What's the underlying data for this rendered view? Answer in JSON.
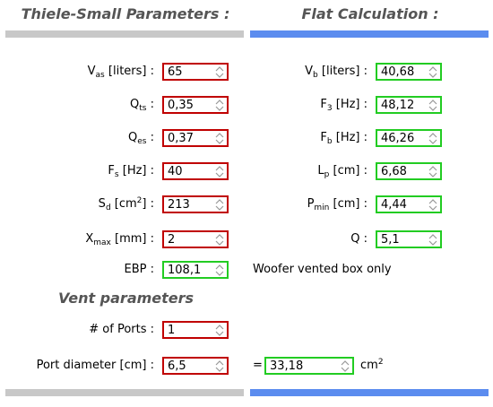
{
  "headers": {
    "left": "Thiele-Small Parameters :",
    "right": "Flat Calculation :"
  },
  "ts_params": [
    {
      "base": "V",
      "sub": "as",
      "suffix": " [liters] :",
      "value": "65"
    },
    {
      "base": "Q",
      "sub": "ts",
      "suffix": " :",
      "value": "0,35"
    },
    {
      "base": "Q",
      "sub": "es",
      "suffix": " :",
      "value": "0,37"
    },
    {
      "base": "F",
      "sub": "s",
      "suffix": " [Hz] :",
      "value": "40"
    },
    {
      "base": "S",
      "sub": "d",
      "suffix": " [cm",
      "sup": "2",
      "suffix2": "] :",
      "value": "213"
    },
    {
      "base": "X",
      "sub": "max",
      "suffix": " [mm] :",
      "value": "2"
    }
  ],
  "ebp": {
    "label": "EBP :",
    "value": "108,1"
  },
  "flat": [
    {
      "base": "V",
      "sub": "b",
      "suffix": " [liters] :",
      "value": "40,68"
    },
    {
      "base": "F",
      "sub": "3",
      "suffix": " [Hz] :",
      "value": "48,12"
    },
    {
      "base": "F",
      "sub": "b",
      "suffix": " [Hz] :",
      "value": "46,26"
    },
    {
      "base": "L",
      "sub": "p",
      "suffix": " [cm] :",
      "value": "6,68"
    },
    {
      "base": "P",
      "sub": "min",
      "suffix": " [cm] :",
      "value": "4,44"
    },
    {
      "base": "Q",
      "sub": "",
      "suffix": " :",
      "value": "5,1"
    }
  ],
  "note": "Woofer vented box only",
  "vent": {
    "title": "Vent parameters",
    "ports_label": "# of Ports :",
    "ports_value": "1",
    "diameter_label": "Port diameter [cm] :",
    "diameter_value": "6,5",
    "equals": "=",
    "area_value": "33,18",
    "area_unit": "cm",
    "area_unit_sup": "2"
  },
  "colors": {
    "invalid_border": "#c00000",
    "valid_border": "#22cc22",
    "left_bar": "#c8c8c8",
    "right_bar": "#5b8cef"
  }
}
